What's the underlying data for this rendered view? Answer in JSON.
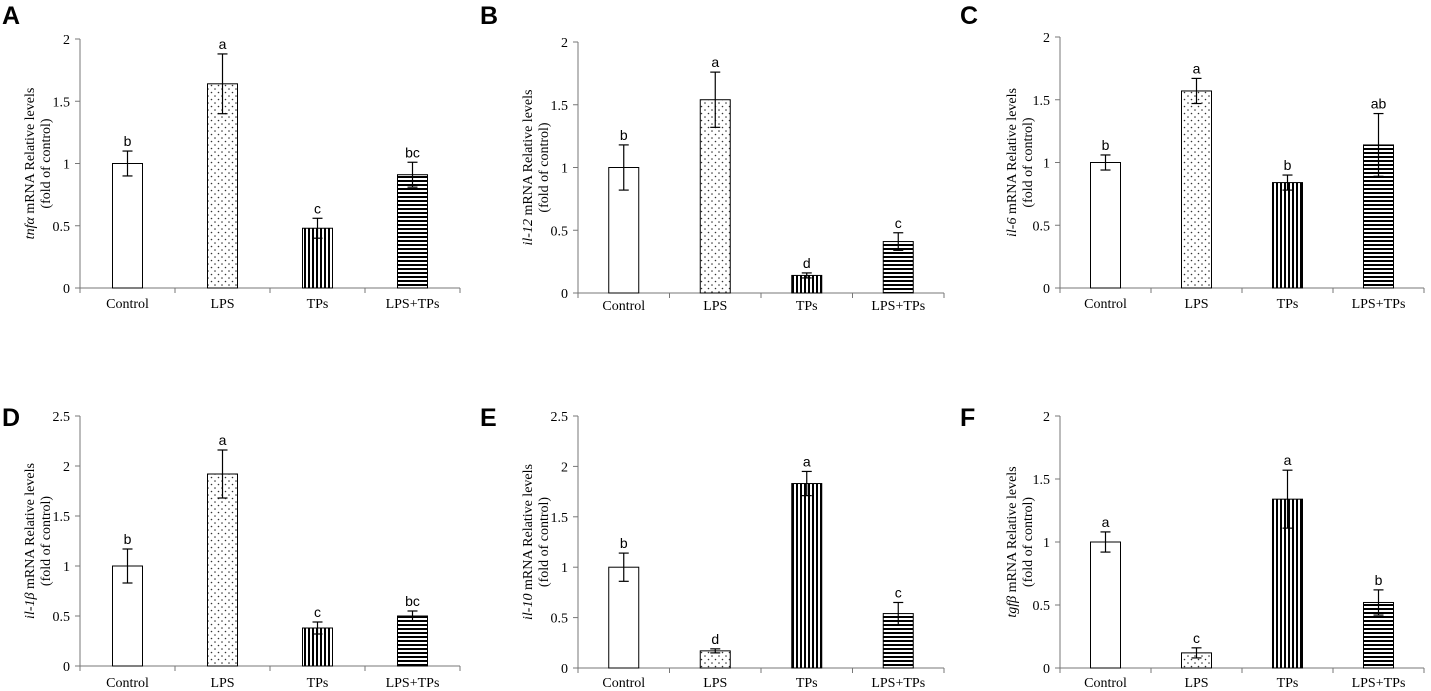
{
  "figure": {
    "categories": [
      "Control",
      "LPS",
      "TPs",
      "LPS+TPs"
    ],
    "ylabel_suffix": " mRNA Relative levels",
    "ylabel_line2": "(fold of control)"
  },
  "chart_data": [
    {
      "type": "bar",
      "panel": "A",
      "gene": "tnfα",
      "ylabel": "tnfα mRNA Relative levels (fold of control)",
      "categories": [
        "Control",
        "LPS",
        "TPs",
        "LPS+TPs"
      ],
      "values": [
        1.0,
        1.64,
        0.48,
        0.91
      ],
      "errors": [
        0.1,
        0.24,
        0.08,
        0.1
      ],
      "significance": [
        "b",
        "a",
        "c",
        "bc"
      ],
      "ylim": [
        0,
        2
      ],
      "yticks": [
        0,
        0.5,
        1,
        1.5,
        2
      ],
      "ytick_labels": [
        "0",
        "0.5",
        "1",
        "1.5",
        "2"
      ]
    },
    {
      "type": "bar",
      "panel": "B",
      "gene": "il-12",
      "ylabel": "il-12 mRNA Relative levels (fold of control)",
      "categories": [
        "Control",
        "LPS",
        "TPs",
        "LPS+TPs"
      ],
      "values": [
        1.0,
        1.54,
        0.14,
        0.41
      ],
      "errors": [
        0.18,
        0.22,
        0.02,
        0.07
      ],
      "significance": [
        "b",
        "a",
        "d",
        "c"
      ],
      "ylim": [
        0,
        2
      ],
      "yticks": [
        0,
        0.5,
        1,
        1.5,
        2
      ],
      "ytick_labels": [
        "0",
        "0.5",
        "1",
        "1.5",
        "2"
      ]
    },
    {
      "type": "bar",
      "panel": "C",
      "gene": "il-6",
      "ylabel": "il-6 mRNA Relative levels (fold of control)",
      "categories": [
        "Control",
        "LPS",
        "TPs",
        "LPS+TPs"
      ],
      "values": [
        1.0,
        1.57,
        0.84,
        1.14
      ],
      "errors": [
        0.06,
        0.1,
        0.06,
        0.25
      ],
      "significance": [
        "b",
        "a",
        "b",
        "ab"
      ],
      "ylim": [
        0,
        2
      ],
      "yticks": [
        0,
        0.5,
        1,
        1.5,
        2
      ],
      "ytick_labels": [
        "0",
        "0.5",
        "1",
        "1.5",
        "2"
      ]
    },
    {
      "type": "bar",
      "panel": "D",
      "gene": "il-1β",
      "ylabel": "il-1β mRNA Relative levels (fold of control)",
      "categories": [
        "Control",
        "LPS",
        "TPs",
        "LPS+TPs"
      ],
      "values": [
        1.0,
        1.92,
        0.38,
        0.5
      ],
      "errors": [
        0.17,
        0.24,
        0.06,
        0.05
      ],
      "significance": [
        "b",
        "a",
        "c",
        "bc"
      ],
      "ylim": [
        0,
        2.5
      ],
      "yticks": [
        0,
        0.5,
        1,
        1.5,
        2,
        2.5
      ],
      "ytick_labels": [
        "0",
        "0.5",
        "1",
        "1.5",
        "2",
        "2.5"
      ]
    },
    {
      "type": "bar",
      "panel": "E",
      "gene": "il-10",
      "ylabel": "il-10 mRNA Relative levels (fold of control)",
      "categories": [
        "Control",
        "LPS",
        "TPs",
        "LPS+TPs"
      ],
      "values": [
        1.0,
        0.17,
        1.83,
        0.54
      ],
      "errors": [
        0.14,
        0.02,
        0.12,
        0.11
      ],
      "significance": [
        "b",
        "d",
        "a",
        "c"
      ],
      "ylim": [
        0,
        2.5
      ],
      "yticks": [
        0,
        0.5,
        1,
        1.5,
        2,
        2.5
      ],
      "ytick_labels": [
        "0",
        "0.5",
        "1",
        "1.5",
        "2",
        "2.5"
      ]
    },
    {
      "type": "bar",
      "panel": "F",
      "gene": "tgfβ",
      "ylabel": "tgfβ mRNA Relative levels (fold of control)",
      "categories": [
        "Control",
        "LPS",
        "TPs",
        "LPS+TPs"
      ],
      "values": [
        1.0,
        0.12,
        1.34,
        0.52
      ],
      "errors": [
        0.08,
        0.04,
        0.23,
        0.1
      ],
      "significance": [
        "a",
        "c",
        "a",
        "b"
      ],
      "ylim": [
        0,
        2
      ],
      "yticks": [
        0,
        0.5,
        1,
        1.5,
        2
      ],
      "ytick_labels": [
        "0",
        "0.5",
        "1",
        "1.5",
        "2"
      ]
    }
  ]
}
